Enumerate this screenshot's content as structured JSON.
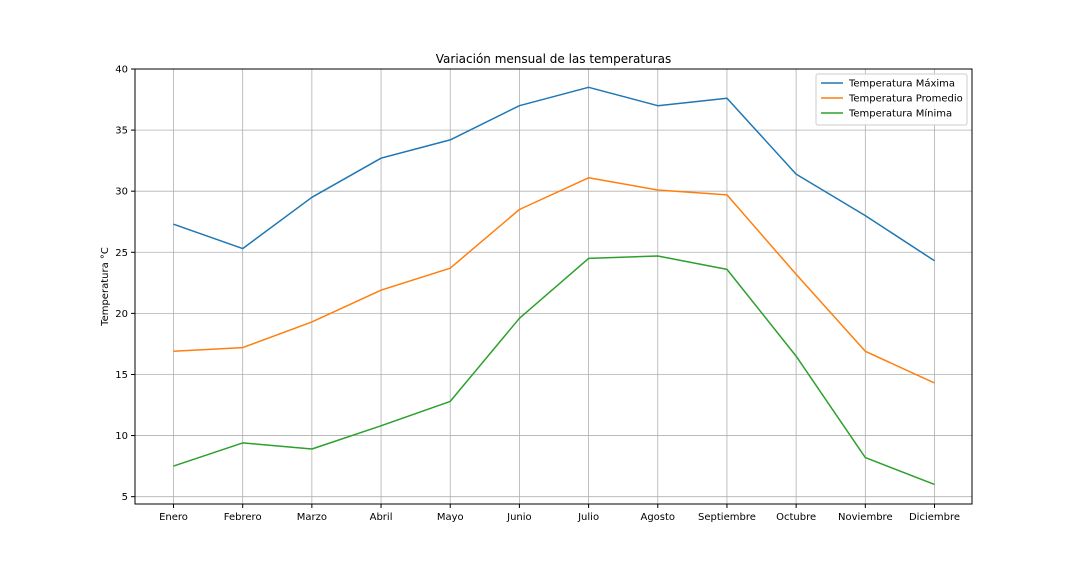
{
  "chart_data": {
    "type": "line",
    "title": "Variación mensual de las temperaturas",
    "xlabel": "",
    "ylabel": "Temperatura °C",
    "categories": [
      "Enero",
      "Febrero",
      "Marzo",
      "Abril",
      "Mayo",
      "Junio",
      "Julio",
      "Agosto",
      "Septiembre",
      "Octubre",
      "Noviembre",
      "Diciembre"
    ],
    "ylim": [
      4.4,
      40.0
    ],
    "yticks": [
      5,
      10,
      15,
      20,
      25,
      30,
      35,
      40
    ],
    "grid": true,
    "legend_position": "top-right",
    "series": [
      {
        "name": "Temperatura Máxima",
        "color": "#1f77b4",
        "values": [
          27.3,
          25.3,
          29.5,
          32.7,
          34.2,
          37.0,
          38.5,
          37.0,
          37.6,
          31.4,
          28.0,
          24.3
        ]
      },
      {
        "name": "Temperatura Promedio",
        "color": "#ff7f0e",
        "values": [
          16.9,
          17.2,
          19.3,
          21.9,
          23.7,
          28.5,
          31.1,
          30.1,
          29.7,
          23.2,
          16.9,
          14.3
        ]
      },
      {
        "name": "Temperatura Mínima",
        "color": "#2ca02c",
        "values": [
          7.5,
          9.4,
          8.9,
          10.8,
          12.8,
          19.6,
          24.5,
          24.7,
          23.6,
          16.5,
          8.2,
          6.0
        ]
      }
    ]
  }
}
